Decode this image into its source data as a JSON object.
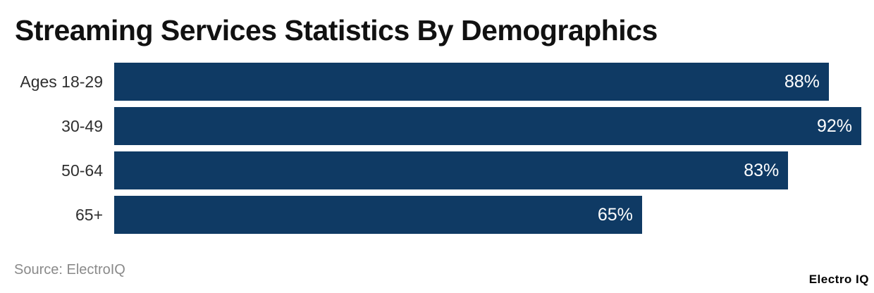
{
  "chart_data": {
    "type": "bar",
    "orientation": "horizontal",
    "title": "Streaming Services Statistics By Demographics",
    "categories": [
      "Ages 18-29",
      "30-49",
      "50-64",
      "65+"
    ],
    "values": [
      88,
      92,
      83,
      65
    ],
    "value_labels": [
      "88%",
      "92%",
      "83%",
      "65%"
    ],
    "value_suffix": "%",
    "xlim": [
      0,
      92
    ],
    "grid": false,
    "axes_hidden": true,
    "value_labels_position": "inside-end",
    "bar_color": "#0f3a64",
    "value_label_color": "#ffffff",
    "category_label_color": "#2f2f2f",
    "title_color": "#111111"
  },
  "footer": {
    "source": "Source: ElectroIQ",
    "brand": "Electro IQ",
    "source_color": "#8a8a8a",
    "brand_color": "#000000"
  }
}
